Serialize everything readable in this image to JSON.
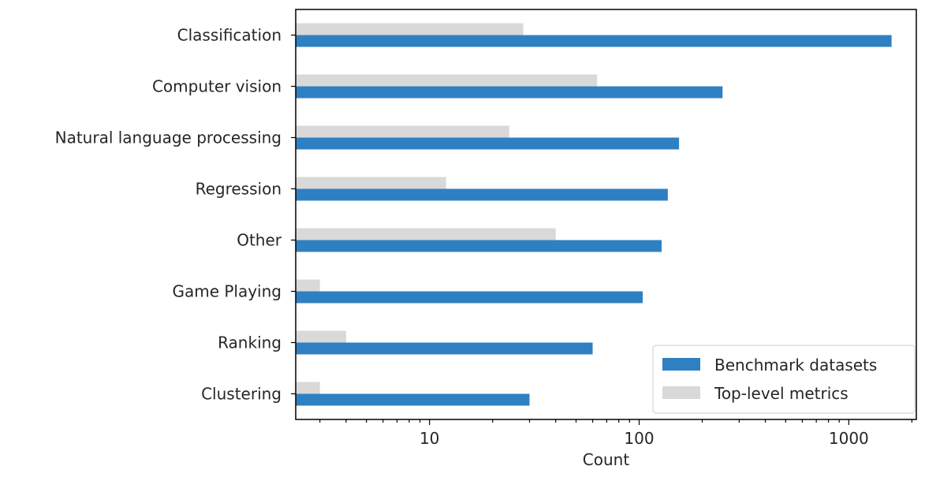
{
  "chart_data": {
    "type": "bar",
    "orientation": "horizontal",
    "categories": [
      "Classification",
      "Computer vision",
      "Natural language processing",
      "Regression",
      "Other",
      "Game Playing",
      "Ranking",
      "Clustering"
    ],
    "series": [
      {
        "name": "Benchmark datasets",
        "color": "#2f80c2",
        "values": [
          1600,
          250,
          155,
          137,
          128,
          104,
          60,
          30
        ]
      },
      {
        "name": "Top-level metrics",
        "color": "#d9d9d9",
        "values": [
          28,
          63,
          24,
          12,
          40,
          3,
          4,
          3
        ]
      }
    ],
    "xlabel": "Count",
    "ylabel": "",
    "xscale": "log",
    "xlim": [
      2.3,
      2100
    ],
    "xticks": [
      10,
      100,
      1000
    ],
    "xtick_labels": [
      "10",
      "100",
      "1000"
    ],
    "grid": false,
    "legend_position": "lower-right"
  }
}
